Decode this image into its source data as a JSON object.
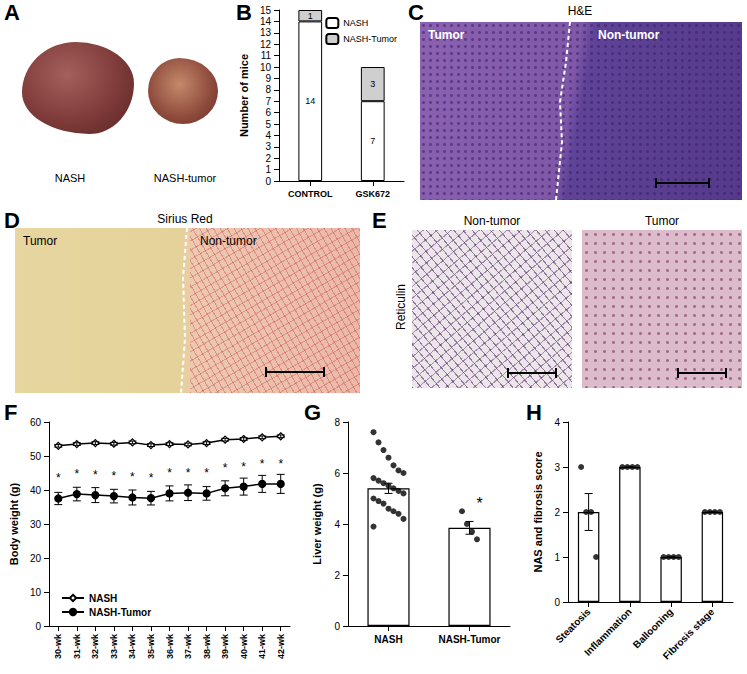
{
  "images": [
    {
      "panel": "A",
      "labels": [
        "NASH",
        "NASH-tumor"
      ]
    },
    {
      "panel": "C",
      "title": "H&E",
      "labels": [
        "Tumor",
        "Non-tumor"
      ]
    },
    {
      "panel": "D",
      "title": "Sirius Red",
      "labels": [
        "Tumor",
        "Non-tumor"
      ]
    },
    {
      "panel": "E",
      "title": "Reticulin",
      "labels": [
        "Non-tumor",
        "Tumor"
      ]
    }
  ],
  "chart_data": [
    {
      "panel": "B",
      "type": "bar",
      "stacked": true,
      "data_labels": true,
      "legend": "top-right",
      "categories": [
        "CONTROL",
        "GSK672"
      ],
      "series": [
        {
          "name": "NASH",
          "color": "#ffffff",
          "values": [
            14,
            7
          ]
        },
        {
          "name": "NASH-Tumor",
          "color": "#cfcfcf",
          "values": [
            1,
            3
          ]
        }
      ],
      "y_label": "Number of mice",
      "ylim": [
        0,
        15
      ],
      "yticks": [
        0,
        1,
        2,
        3,
        4,
        5,
        6,
        7,
        8,
        9,
        10,
        11,
        12,
        13,
        14,
        15
      ]
    },
    {
      "panel": "F",
      "type": "line",
      "legend": "bottom-left",
      "categories": [
        "30-wk",
        "31-wk",
        "32-wk",
        "33-wk",
        "34-wk",
        "35-wk",
        "36-wk",
        "37-wk",
        "38-wk",
        "39-wk",
        "40-wk",
        "41-wk",
        "42-wk"
      ],
      "series": [
        {
          "name": "NASH",
          "color": "#000000",
          "marker": "open-diamond",
          "values": [
            53,
            53.5,
            53.8,
            53.6,
            54,
            53.2,
            53.5,
            53.4,
            53.8,
            54.8,
            55,
            55.5,
            55.8
          ],
          "errors": [
            0.4,
            0.4,
            0.4,
            0.4,
            0.4,
            0.4,
            0.4,
            0.4,
            0.4,
            0.4,
            0.4,
            0.4,
            0.4
          ]
        },
        {
          "name": "NASH-Tumor",
          "color": "#000000",
          "marker": "filled-circle",
          "values": [
            37.5,
            38.8,
            38.5,
            38.2,
            37.8,
            37.6,
            39,
            39.2,
            39,
            40.5,
            41,
            41.8,
            41.8
          ],
          "errors": [
            1.8,
            2.0,
            2.2,
            2.0,
            2.2,
            2.0,
            2.2,
            2.3,
            2.0,
            2.2,
            2.5,
            2.5,
            2.8
          ],
          "significance": [
            "*",
            "*",
            "*",
            "*",
            "*",
            "*",
            "*",
            "*",
            "*",
            "*",
            "*",
            "*",
            "*"
          ]
        }
      ],
      "y_label": "Body weight (g)",
      "ylim": [
        0,
        60
      ],
      "yticks": [
        0,
        10,
        20,
        30,
        40,
        50,
        60
      ]
    },
    {
      "panel": "G",
      "type": "bar",
      "color": "#ffffff",
      "categories": [
        "NASH",
        "NASH-Tumor"
      ],
      "values": [
        5.4,
        3.85
      ],
      "errors": [
        0.2,
        0.25
      ],
      "points": [
        [
          7.6,
          7.2,
          6.9,
          6.6,
          6.3,
          6.1,
          6.0,
          5.8,
          5.7,
          5.6,
          5.5,
          5.4,
          5.3,
          5.2,
          5.0,
          4.9,
          4.8,
          4.6,
          4.5,
          4.4,
          4.2,
          3.9
        ],
        [
          4.5,
          4.0,
          3.7,
          3.4
        ]
      ],
      "significance": [
        null,
        "*"
      ],
      "y_label": "Liver weight (g)",
      "ylim": [
        0,
        8
      ],
      "yticks": [
        0,
        2,
        4,
        6,
        8
      ]
    },
    {
      "panel": "H",
      "type": "bar",
      "color": "#ffffff",
      "categories": [
        "Steatosis",
        "Inflammation",
        "Ballooning",
        "Fibrosis stage"
      ],
      "values": [
        2,
        3,
        1,
        2
      ],
      "errors": [
        0.41,
        0,
        0,
        0
      ],
      "points": [
        [
          3,
          2,
          2,
          1
        ],
        [
          3,
          3,
          3,
          3
        ],
        [
          1,
          1,
          1,
          1
        ],
        [
          2,
          2,
          2,
          2
        ]
      ],
      "y_label": "NAS and fibrosis score",
      "ylim": [
        0,
        4
      ],
      "yticks": [
        0,
        1,
        2,
        3,
        4
      ]
    }
  ]
}
